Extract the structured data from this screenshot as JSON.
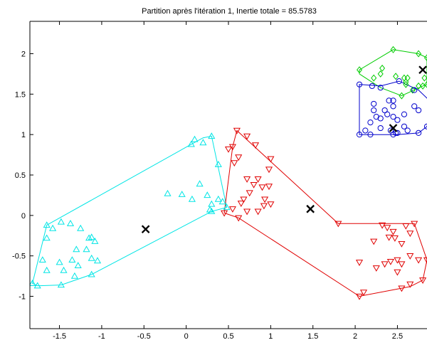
{
  "chart_data": {
    "type": "scatter",
    "title": "Partition après l'itération 1,  Inertie totale = 85.5783",
    "xlabel": "",
    "ylabel": "",
    "xlim": [
      -1.85,
      2.85
    ],
    "ylim": [
      -1.4,
      2.4
    ],
    "x_ticks": [
      -1.5,
      -1,
      -0.5,
      0,
      0.5,
      1,
      1.5,
      2,
      2.5
    ],
    "x_tick_labels": [
      "-1.5",
      "-1",
      "-0.5",
      "0",
      "0.5",
      "1",
      "1.5",
      "2",
      "2.5"
    ],
    "y_ticks": [
      -1,
      -0.5,
      0,
      0.5,
      1,
      1.5,
      2
    ],
    "y_tick_labels": [
      "-1",
      "-0.5",
      "0",
      "0.5",
      "1",
      "1.5",
      "2"
    ],
    "grid": false,
    "series": [
      {
        "marker": "triangle",
        "color": "#00e5e5",
        "points": [
          [
            -1.65,
            -0.12
          ],
          [
            -1.58,
            -0.16
          ],
          [
            -1.65,
            -0.28
          ],
          [
            -1.48,
            -0.08
          ],
          [
            -1.37,
            -0.1
          ],
          [
            -1.25,
            -0.16
          ],
          [
            -1.15,
            -0.28
          ],
          [
            -1.12,
            -0.27
          ],
          [
            -1.08,
            -0.32
          ],
          [
            -1.18,
            -0.42
          ],
          [
            -1.3,
            -0.42
          ],
          [
            -1.35,
            -0.55
          ],
          [
            -1.5,
            -0.58
          ],
          [
            -1.7,
            -0.55
          ],
          [
            -1.65,
            -0.68
          ],
          [
            -1.45,
            -0.68
          ],
          [
            -1.28,
            -0.62
          ],
          [
            -1.12,
            -0.53
          ],
          [
            -1.05,
            -0.56
          ],
          [
            -1.32,
            -0.75
          ],
          [
            -1.12,
            -0.73
          ],
          [
            -1.48,
            -0.86
          ],
          [
            -1.76,
            -0.87
          ],
          [
            -1.82,
            -0.84
          ],
          [
            -0.22,
            0.27
          ],
          [
            -0.05,
            0.26
          ],
          [
            0.07,
            0.2
          ],
          [
            0.16,
            0.39
          ],
          [
            0.25,
            0.25
          ],
          [
            0.3,
            0.14
          ],
          [
            0.28,
            0.07
          ],
          [
            0.38,
            0.2
          ],
          [
            0.43,
            0.17
          ],
          [
            0.48,
            0.1
          ],
          [
            0.3,
            0.05
          ],
          [
            0.38,
            0.63
          ],
          [
            0.3,
            0.98
          ],
          [
            0.2,
            0.9
          ],
          [
            0.06,
            0.88
          ],
          [
            0.1,
            0.94
          ]
        ]
      },
      {
        "marker": "triangle-down",
        "color": "#e00000",
        "points": [
          [
            0.6,
            1.05
          ],
          [
            0.72,
            0.98
          ],
          [
            0.55,
            0.85
          ],
          [
            0.5,
            0.82
          ],
          [
            0.62,
            0.72
          ],
          [
            0.57,
            0.65
          ],
          [
            0.82,
            0.87
          ],
          [
            1.0,
            0.7
          ],
          [
            0.98,
            0.57
          ],
          [
            0.85,
            0.45
          ],
          [
            0.72,
            0.45
          ],
          [
            0.8,
            0.38
          ],
          [
            0.9,
            0.35
          ],
          [
            0.98,
            0.36
          ],
          [
            0.75,
            0.28
          ],
          [
            0.68,
            0.2
          ],
          [
            0.65,
            0.15
          ],
          [
            0.93,
            0.2
          ],
          [
            0.92,
            0.12
          ],
          [
            1.0,
            0.14
          ],
          [
            0.85,
            0.05
          ],
          [
            0.72,
            0.05
          ],
          [
            0.62,
            -0.03
          ],
          [
            0.45,
            0.03
          ],
          [
            0.55,
            0.08
          ],
          [
            1.8,
            -0.1
          ],
          [
            2.32,
            -0.12
          ],
          [
            2.38,
            -0.15
          ],
          [
            2.45,
            -0.2
          ],
          [
            2.6,
            -0.13
          ],
          [
            2.7,
            -0.1
          ],
          [
            2.65,
            -0.22
          ],
          [
            2.4,
            -0.27
          ],
          [
            2.22,
            -0.32
          ],
          [
            2.47,
            -0.28
          ],
          [
            2.55,
            -0.35
          ],
          [
            2.65,
            -0.5
          ],
          [
            2.5,
            -0.55
          ],
          [
            2.42,
            -0.57
          ],
          [
            2.35,
            -0.6
          ],
          [
            2.55,
            -0.6
          ],
          [
            2.05,
            -0.58
          ],
          [
            2.25,
            -0.65
          ],
          [
            2.5,
            -0.7
          ],
          [
            2.75,
            -0.55
          ],
          [
            2.85,
            -0.55
          ],
          [
            2.1,
            -0.95
          ],
          [
            2.65,
            -0.85
          ],
          [
            2.55,
            -0.9
          ],
          [
            2.8,
            -0.8
          ],
          [
            2.05,
            -1.0
          ]
        ]
      },
      {
        "marker": "diamond",
        "color": "#00cc00",
        "points": [
          [
            2.05,
            1.8
          ],
          [
            2.32,
            1.82
          ],
          [
            2.3,
            1.75
          ],
          [
            2.6,
            1.62
          ],
          [
            2.45,
            2.05
          ],
          [
            2.75,
            2.0
          ],
          [
            2.85,
            1.95
          ],
          [
            2.82,
            1.7
          ],
          [
            2.8,
            1.6
          ],
          [
            2.75,
            1.6
          ],
          [
            2.68,
            1.55
          ],
          [
            2.62,
            1.7
          ],
          [
            2.58,
            1.7
          ],
          [
            2.48,
            1.72
          ],
          [
            2.6,
            1.65
          ],
          [
            2.85,
            1.62
          ],
          [
            2.22,
            1.7
          ],
          [
            2.55,
            1.48
          ]
        ]
      },
      {
        "marker": "circle",
        "color": "#0000cc",
        "points": [
          [
            2.05,
            1.62
          ],
          [
            2.2,
            1.6
          ],
          [
            2.3,
            1.58
          ],
          [
            2.52,
            1.66
          ],
          [
            2.7,
            1.55
          ],
          [
            2.75,
            1.3
          ],
          [
            2.7,
            1.35
          ],
          [
            2.45,
            1.42
          ],
          [
            2.4,
            1.42
          ],
          [
            2.35,
            1.3
          ],
          [
            2.22,
            1.38
          ],
          [
            2.45,
            1.35
          ],
          [
            2.38,
            1.25
          ],
          [
            2.58,
            1.25
          ],
          [
            2.45,
            1.22
          ],
          [
            2.5,
            1.18
          ],
          [
            2.3,
            1.2
          ],
          [
            2.22,
            1.3
          ],
          [
            2.25,
            1.22
          ],
          [
            2.18,
            1.15
          ],
          [
            2.12,
            1.05
          ],
          [
            2.18,
            1.0
          ],
          [
            2.3,
            1.08
          ],
          [
            2.42,
            1.05
          ],
          [
            2.45,
            1.0
          ],
          [
            2.48,
            1.02
          ],
          [
            2.5,
            1.02
          ],
          [
            2.58,
            1.1
          ],
          [
            2.62,
            1.05
          ],
          [
            2.75,
            1.02
          ],
          [
            2.85,
            1.1
          ],
          [
            2.05,
            1.0
          ]
        ]
      }
    ],
    "hulls": [
      {
        "color": "#00e5e5",
        "points": [
          [
            -1.82,
            -0.84
          ],
          [
            -1.65,
            -0.12
          ],
          [
            0.06,
            0.88
          ],
          [
            0.2,
            0.96
          ],
          [
            0.3,
            0.98
          ],
          [
            0.48,
            0.1
          ],
          [
            0.3,
            0.05
          ],
          [
            -1.12,
            -0.73
          ],
          [
            -1.48,
            -0.86
          ],
          [
            -1.76,
            -0.87
          ]
        ]
      },
      {
        "color": "#e00000",
        "points": [
          [
            0.6,
            1.05
          ],
          [
            1.8,
            -0.1
          ],
          [
            2.7,
            -0.1
          ],
          [
            2.85,
            -0.55
          ],
          [
            2.8,
            -0.8
          ],
          [
            2.65,
            -0.88
          ],
          [
            2.05,
            -1.0
          ],
          [
            0.62,
            -0.03
          ],
          [
            0.45,
            0.03
          ],
          [
            0.55,
            0.85
          ]
        ]
      },
      {
        "color": "#00cc00",
        "points": [
          [
            2.05,
            1.8
          ],
          [
            2.45,
            2.05
          ],
          [
            2.75,
            2.0
          ],
          [
            2.85,
            1.95
          ],
          [
            2.85,
            1.62
          ],
          [
            2.8,
            1.6
          ],
          [
            2.55,
            1.48
          ],
          [
            2.3,
            1.58
          ],
          [
            2.05,
            1.75
          ]
        ]
      },
      {
        "color": "#0000cc",
        "points": [
          [
            2.05,
            1.62
          ],
          [
            2.3,
            1.6
          ],
          [
            2.52,
            1.66
          ],
          [
            2.75,
            1.55
          ],
          [
            2.9,
            1.4
          ],
          [
            2.85,
            1.1
          ],
          [
            2.75,
            1.02
          ],
          [
            2.5,
            1.0
          ],
          [
            2.05,
            1.0
          ]
        ]
      }
    ],
    "centroids": [
      [
        -0.48,
        -0.17
      ],
      [
        1.47,
        0.08
      ],
      [
        2.45,
        1.08
      ],
      [
        2.8,
        1.8
      ]
    ]
  }
}
